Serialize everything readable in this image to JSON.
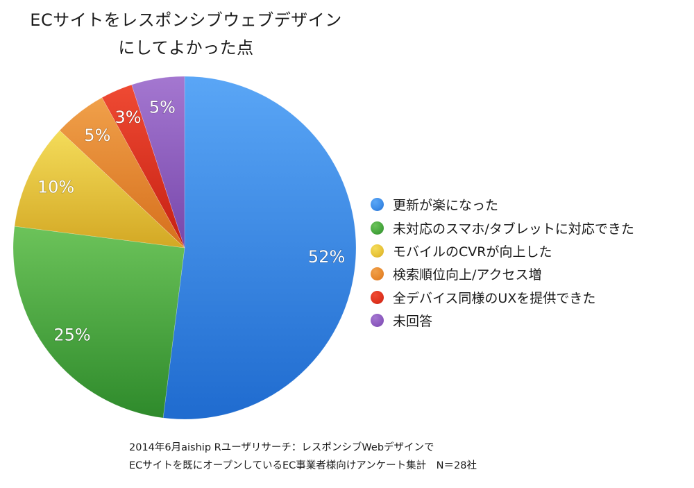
{
  "chart_data": {
    "type": "pie",
    "title_lines": [
      "ECサイトをレスポンシブウェブデザイン",
      "にしてよかった点"
    ],
    "slices": [
      {
        "name": "更新が楽になった",
        "value": 52,
        "label": "52%",
        "color": "#3f8ee8",
        "color_light": "#5aa6f6",
        "color_dark": "#1f6bcf"
      },
      {
        "name": "未対応のスマホ/タブレットに対応できた",
        "value": 25,
        "label": "25%",
        "color": "#49a83f",
        "color_light": "#6cc35a",
        "color_dark": "#2e8a2b"
      },
      {
        "name": "モバイルのCVRが向上した",
        "value": 10,
        "label": "10%",
        "color": "#e8c43a",
        "color_light": "#f4dc5a",
        "color_dark": "#d3a824"
      },
      {
        "name": "検索順位向上/アクセス増",
        "value": 5,
        "label": "5%",
        "color": "#e88a2e",
        "color_light": "#f0a04a",
        "color_dark": "#d66f1c"
      },
      {
        "name": "全デバイス同様のUXを提供できた",
        "value": 3,
        "label": "3%",
        "color": "#e0341f",
        "color_light": "#ef4a33",
        "color_dark": "#c51f12"
      },
      {
        "name": "未回答",
        "value": 5,
        "label": "5%",
        "color": "#8e5cc0",
        "color_light": "#a477d0",
        "color_dark": "#7747ab"
      }
    ],
    "legend_position": "right"
  },
  "footnote": {
    "line1": "2014年6月aiship Rユーザリサーチ：レスポンシブWebデザインで",
    "line2": "ECサイトを既にオープンしているEC事業者様向けアンケート集計　N＝28社"
  }
}
